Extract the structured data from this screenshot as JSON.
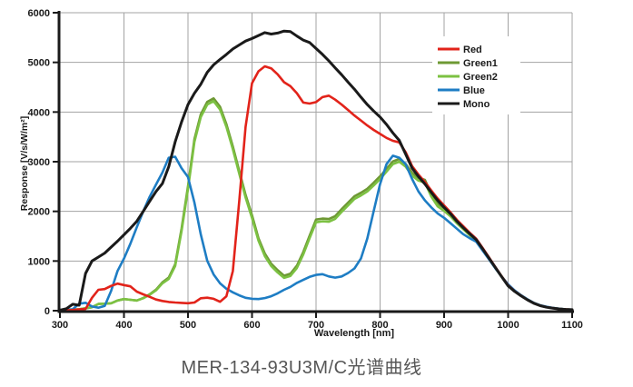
{
  "caption": "MER-134-93U3M/C光谱曲线",
  "colors": {
    "grid": "#a3a3a3",
    "axis": "#1a1a1a",
    "caption": "#565656",
    "plot_bg": "#ffffff"
  },
  "chart_data": {
    "type": "line",
    "title": "MER-134-93U3M/C光谱曲线",
    "xlabel": "Wavelength [nm]",
    "ylabel": "Response [V/s/W/m²]",
    "xlim": [
      300,
      1100
    ],
    "ylim": [
      0,
      6000
    ],
    "x_tick_step": 100,
    "y_tick_step": 1000,
    "grid": true,
    "legend_position": "top-right",
    "x": [
      300,
      310,
      320,
      330,
      340,
      350,
      360,
      370,
      380,
      390,
      400,
      410,
      420,
      430,
      440,
      450,
      460,
      470,
      480,
      490,
      500,
      510,
      520,
      530,
      540,
      550,
      560,
      570,
      580,
      590,
      600,
      610,
      620,
      630,
      640,
      650,
      660,
      670,
      680,
      690,
      700,
      710,
      720,
      730,
      740,
      750,
      760,
      770,
      780,
      790,
      800,
      810,
      820,
      830,
      840,
      850,
      860,
      870,
      880,
      890,
      900,
      910,
      920,
      930,
      940,
      950,
      960,
      970,
      980,
      990,
      1000,
      1010,
      1020,
      1030,
      1040,
      1050,
      1060,
      1070,
      1080,
      1090,
      1100
    ],
    "series": [
      {
        "name": "Red",
        "color": "#e2231a",
        "values": [
          10,
          10,
          15,
          25,
          35,
          260,
          420,
          435,
          500,
          545,
          515,
          490,
          385,
          330,
          280,
          225,
          195,
          175,
          165,
          158,
          150,
          165,
          250,
          262,
          240,
          180,
          290,
          800,
          2200,
          3700,
          4580,
          4820,
          4920,
          4880,
          4760,
          4600,
          4520,
          4380,
          4190,
          4170,
          4200,
          4300,
          4330,
          4250,
          4150,
          4040,
          3930,
          3830,
          3730,
          3640,
          3560,
          3480,
          3420,
          3390,
          3190,
          2910,
          2740,
          2590,
          2420,
          2260,
          2120,
          1980,
          1830,
          1700,
          1570,
          1450,
          1265,
          1075,
          880,
          690,
          510,
          395,
          305,
          222,
          152,
          102,
          72,
          52,
          37,
          27,
          20
        ]
      },
      {
        "name": "Green1",
        "color": "#6e9934",
        "values": [
          10,
          15,
          20,
          30,
          50,
          70,
          135,
          140,
          150,
          205,
          235,
          220,
          205,
          255,
          330,
          425,
          570,
          665,
          935,
          1650,
          2505,
          3455,
          3955,
          4205,
          4275,
          4105,
          3755,
          3305,
          2815,
          2335,
          1920,
          1460,
          1150,
          945,
          815,
          705,
          745,
          905,
          1180,
          1510,
          1835,
          1855,
          1845,
          1905,
          2045,
          2175,
          2305,
          2375,
          2455,
          2575,
          2705,
          2855,
          3005,
          3055,
          2955,
          2775,
          2675,
          2635,
          2355,
          2155,
          2065,
          1950,
          1805,
          1680,
          1555,
          1440,
          1255,
          1060,
          875,
          692,
          518,
          405,
          312,
          228,
          158,
          107,
          75,
          54,
          38,
          28,
          21
        ]
      },
      {
        "name": "Green2",
        "color": "#7cc142",
        "values": [
          10,
          15,
          20,
          30,
          50,
          70,
          135,
          140,
          150,
          205,
          235,
          220,
          205,
          250,
          320,
          410,
          550,
          640,
          900,
          1600,
          2450,
          3400,
          3900,
          4150,
          4220,
          4050,
          3700,
          3250,
          2760,
          2280,
          1865,
          1410,
          1100,
          900,
          770,
          660,
          700,
          860,
          1130,
          1460,
          1780,
          1800,
          1790,
          1850,
          1990,
          2120,
          2250,
          2320,
          2400,
          2520,
          2650,
          2800,
          2950,
          3000,
          2900,
          2720,
          2620,
          2580,
          2300,
          2100,
          2010,
          1900,
          1760,
          1640,
          1520,
          1410,
          1230,
          1040,
          860,
          680,
          510,
          400,
          308,
          226,
          156,
          106,
          74,
          53,
          38,
          27,
          21
        ]
      },
      {
        "name": "Blue",
        "color": "#1e7dc4",
        "values": [
          15,
          20,
          30,
          140,
          160,
          85,
          60,
          95,
          400,
          800,
          1050,
          1350,
          1680,
          2000,
          2290,
          2540,
          2780,
          3080,
          3100,
          2870,
          2690,
          2175,
          1535,
          1005,
          730,
          550,
          440,
          370,
          310,
          260,
          240,
          235,
          255,
          290,
          350,
          420,
          480,
          560,
          620,
          680,
          720,
          735,
          690,
          665,
          690,
          760,
          850,
          1050,
          1450,
          2000,
          2550,
          2950,
          3120,
          3080,
          2950,
          2650,
          2400,
          2220,
          2080,
          1960,
          1870,
          1760,
          1650,
          1540,
          1460,
          1390,
          1215,
          1035,
          855,
          685,
          530,
          410,
          312,
          230,
          160,
          110,
          78,
          56,
          40,
          28,
          22
        ]
      },
      {
        "name": "Mono",
        "color": "#1a1a1a",
        "values": [
          10,
          40,
          130,
          110,
          750,
          1000,
          1080,
          1160,
          1280,
          1400,
          1530,
          1660,
          1800,
          2000,
          2200,
          2400,
          2560,
          2900,
          3400,
          3800,
          4150,
          4380,
          4560,
          4800,
          4950,
          5060,
          5160,
          5270,
          5350,
          5430,
          5480,
          5540,
          5600,
          5570,
          5590,
          5630,
          5620,
          5530,
          5450,
          5400,
          5280,
          5160,
          5030,
          4890,
          4750,
          4600,
          4460,
          4300,
          4150,
          4020,
          3900,
          3750,
          3580,
          3430,
          3150,
          2870,
          2700,
          2550,
          2380,
          2220,
          2080,
          1950,
          1800,
          1670,
          1550,
          1430,
          1250,
          1060,
          870,
          680,
          500,
          390,
          300,
          220,
          150,
          100,
          70,
          50,
          35,
          25,
          20
        ]
      }
    ]
  }
}
